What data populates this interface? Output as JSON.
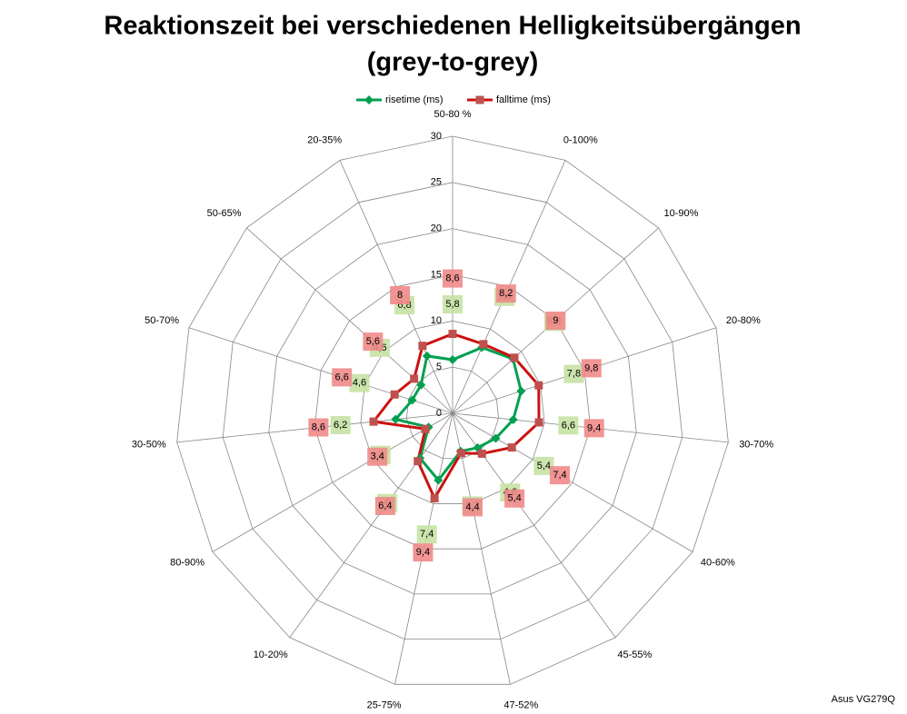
{
  "chart_data": {
    "type": "radar",
    "title": [
      "Reaktionszeit bei verschiedenen Helligkeitsübergängen",
      "(grey-to-grey)"
    ],
    "categories": [
      "50-80 %",
      "0-100%",
      "10-90%",
      "20-80%",
      "30-70%",
      "40-60%",
      "45-55%",
      "47-52%",
      "25-75%",
      "10-20%",
      "80-90%",
      "30-50%",
      "50-70%",
      "50-65%",
      "20-35%"
    ],
    "series": [
      {
        "name": "risetime (ms)",
        "color": "#00a050",
        "label_color": "#c6e2a4",
        "values": [
          5.8,
          7.8,
          8.8,
          7.8,
          6.6,
          5.4,
          4.6,
          4.2,
          7.4,
          6,
          3,
          6.2,
          4.6,
          4.6,
          6.8
        ],
        "value_labels": [
          "5,8",
          "7,8",
          "8,8",
          "7,8",
          "6,6",
          "5,4",
          "4,6",
          "4,2",
          "7,4",
          "6",
          "3",
          "6,2",
          "4,6",
          "4,6",
          "6,8"
        ]
      },
      {
        "name": "falltime (ms)",
        "color": "#cc1111",
        "marker_color": "#c0504d",
        "label_color": "#f08a8a",
        "values": [
          8.6,
          8.2,
          9,
          9.8,
          9.4,
          7.4,
          5.4,
          4.4,
          9.4,
          6.4,
          3.4,
          8.6,
          6.6,
          5.6,
          8
        ],
        "value_labels": [
          "8,6",
          "8,2",
          "9",
          "9,8",
          "9,4",
          "7,4",
          "5,4",
          "4,4",
          "9,4",
          "6,4",
          "3,4",
          "8,6",
          "6,6",
          "5,6",
          "8"
        ]
      }
    ],
    "rlim": [
      0,
      30
    ],
    "rticks": [
      0,
      5,
      10,
      15,
      20,
      25,
      30
    ],
    "grid": true,
    "legend": "top",
    "annotation": "Asus VG279Q"
  }
}
